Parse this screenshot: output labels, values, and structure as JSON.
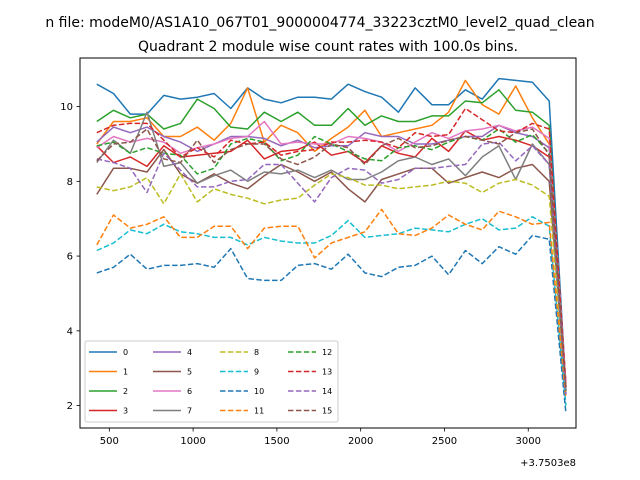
{
  "suptitle": "n file: modeM0/AS1A10_067T01_9000004774_33223cztM0_level2_quad_clean",
  "chart_data": {
    "type": "line",
    "title": "Quadrant 2 module wise count rates with 100.0s bins.",
    "xlabel": "",
    "ylabel": "",
    "x_offset_label": "+3.7503e8",
    "xlim": [
      325,
      3285
    ],
    "ylim": [
      1.4,
      11.3
    ],
    "xticks": [
      500,
      1000,
      1500,
      2000,
      2500,
      3000
    ],
    "yticks": [
      2,
      4,
      6,
      8,
      10
    ],
    "grid": false,
    "legend": {
      "placement": "lower left",
      "columns": 4
    },
    "x": [
      425,
      525,
      625,
      725,
      825,
      925,
      1025,
      1125,
      1225,
      1325,
      1425,
      1525,
      1625,
      1725,
      1825,
      1925,
      2025,
      2125,
      2225,
      2325,
      2425,
      2525,
      2625,
      2725,
      2825,
      2925,
      3025,
      3125,
      3225
    ],
    "series": [
      {
        "name": "0",
        "color": "#1f77b4",
        "dash": "solid",
        "values": [
          10.6,
          10.35,
          9.8,
          9.8,
          10.3,
          10.2,
          10.25,
          10.35,
          9.95,
          10.5,
          10.2,
          10.1,
          10.25,
          10.25,
          10.2,
          10.6,
          10.4,
          10.25,
          9.85,
          10.5,
          10.05,
          10.05,
          10.45,
          10.2,
          10.75,
          10.7,
          10.65,
          10.15,
          2.5
        ]
      },
      {
        "name": "1",
        "color": "#ff7f0e",
        "dash": "solid",
        "values": [
          9.0,
          9.6,
          9.6,
          9.7,
          9.2,
          9.2,
          9.45,
          9.1,
          9.55,
          10.5,
          9.05,
          9.5,
          9.3,
          8.8,
          9.15,
          9.45,
          9.9,
          9.2,
          9.3,
          9.4,
          9.5,
          9.85,
          10.7,
          10.05,
          9.8,
          10.55,
          9.7,
          9.0,
          2.6
        ]
      },
      {
        "name": "2",
        "color": "#2ca02c",
        "dash": "solid",
        "values": [
          9.6,
          9.9,
          9.7,
          9.8,
          9.4,
          9.55,
          10.2,
          9.95,
          9.45,
          9.4,
          9.85,
          9.6,
          9.85,
          9.5,
          9.5,
          9.95,
          9.5,
          9.75,
          9.6,
          9.6,
          9.75,
          9.75,
          10.15,
          10.1,
          10.45,
          9.9,
          9.85,
          9.5,
          2.4
        ]
      },
      {
        "name": "3",
        "color": "#d62728",
        "dash": "solid",
        "values": [
          8.95,
          8.5,
          8.65,
          8.4,
          8.95,
          8.65,
          8.7,
          8.75,
          8.8,
          9.1,
          8.6,
          8.8,
          8.85,
          9.05,
          8.7,
          8.8,
          8.5,
          8.95,
          8.75,
          8.65,
          9.15,
          8.8,
          9.35,
          9.1,
          9.2,
          9.1,
          8.95,
          8.65,
          2.5
        ]
      },
      {
        "name": "4",
        "color": "#9467bd",
        "dash": "solid",
        "values": [
          9.05,
          9.45,
          9.3,
          9.45,
          9.2,
          9.05,
          8.8,
          9.0,
          9.2,
          9.2,
          9.15,
          8.95,
          9.1,
          8.9,
          8.95,
          8.95,
          9.3,
          9.2,
          9.2,
          9.0,
          9.0,
          9.1,
          9.2,
          9.2,
          9.5,
          9.3,
          9.2,
          8.9,
          2.6
        ]
      },
      {
        "name": "5",
        "color": "#8c564b",
        "dash": "solid",
        "values": [
          7.65,
          8.35,
          8.35,
          8.25,
          8.85,
          8.2,
          7.95,
          8.2,
          7.95,
          7.8,
          8.15,
          8.45,
          8.25,
          8.0,
          8.25,
          7.8,
          7.45,
          8.05,
          8.2,
          8.35,
          8.35,
          7.95,
          8.1,
          8.25,
          8.1,
          8.35,
          8.45,
          8.0,
          2.3
        ]
      },
      {
        "name": "6",
        "color": "#e377c2",
        "dash": "solid",
        "values": [
          8.9,
          9.2,
          9.05,
          9.15,
          9.05,
          8.75,
          8.9,
          9.0,
          9.15,
          9.2,
          9.6,
          9.0,
          9.05,
          9.0,
          9.0,
          9.2,
          9.15,
          9.05,
          8.8,
          9.05,
          9.3,
          9.15,
          9.35,
          9.4,
          9.5,
          9.35,
          9.45,
          9.15,
          2.6
        ]
      },
      {
        "name": "7",
        "color": "#7f7f7f",
        "dash": "solid",
        "values": [
          8.5,
          9.1,
          8.75,
          9.85,
          8.4,
          8.5,
          7.95,
          8.15,
          8.3,
          8.0,
          8.25,
          8.2,
          8.3,
          8.1,
          8.3,
          8.05,
          8.05,
          8.25,
          8.55,
          8.65,
          8.45,
          8.6,
          8.15,
          8.65,
          8.95,
          8.05,
          9.0,
          8.45,
          2.4
        ]
      },
      {
        "name": "8",
        "color": "#bcbd22",
        "dash": "dashed",
        "values": [
          7.85,
          7.75,
          7.85,
          8.1,
          7.4,
          8.2,
          7.45,
          7.8,
          7.65,
          7.55,
          7.4,
          7.5,
          7.55,
          7.9,
          8.2,
          8.1,
          7.9,
          7.9,
          7.8,
          7.85,
          7.9,
          8.0,
          7.95,
          7.7,
          7.95,
          8.05,
          7.9,
          7.6,
          2.3
        ]
      },
      {
        "name": "9",
        "color": "#17becf",
        "dash": "dashed",
        "values": [
          6.15,
          6.35,
          6.7,
          6.6,
          6.85,
          6.65,
          6.6,
          6.5,
          6.5,
          6.3,
          6.5,
          6.4,
          6.35,
          6.35,
          6.55,
          6.95,
          6.5,
          6.55,
          6.6,
          6.75,
          6.7,
          6.65,
          6.85,
          7.0,
          6.7,
          6.75,
          7.05,
          6.8,
          2.0
        ]
      },
      {
        "name": "10",
        "color": "#1f77b4",
        "dash": "dashed",
        "values": [
          5.55,
          5.7,
          6.05,
          5.65,
          5.75,
          5.75,
          5.8,
          5.7,
          6.2,
          5.4,
          5.35,
          5.35,
          5.75,
          5.8,
          5.65,
          6.05,
          5.55,
          5.45,
          5.7,
          5.75,
          6.0,
          5.5,
          6.15,
          5.8,
          6.25,
          6.05,
          6.55,
          6.45,
          1.8
        ]
      },
      {
        "name": "11",
        "color": "#ff7f0e",
        "dash": "dashed",
        "values": [
          6.3,
          7.1,
          6.75,
          6.85,
          7.05,
          6.5,
          6.5,
          6.8,
          6.8,
          6.2,
          6.75,
          6.8,
          6.8,
          5.95,
          6.35,
          6.5,
          6.65,
          7.25,
          6.6,
          6.55,
          6.75,
          7.1,
          6.85,
          6.7,
          7.2,
          7.05,
          6.85,
          6.9,
          2.2
        ]
      },
      {
        "name": "12",
        "color": "#2ca02c",
        "dash": "dashed",
        "values": [
          8.95,
          9.05,
          8.75,
          8.9,
          8.75,
          8.7,
          8.2,
          8.35,
          9.0,
          9.15,
          9.05,
          8.55,
          8.7,
          9.2,
          9.0,
          8.8,
          8.6,
          8.55,
          8.9,
          8.95,
          8.85,
          9.05,
          9.2,
          9.1,
          9.4,
          9.05,
          9.25,
          8.75,
          2.4
        ]
      },
      {
        "name": "13",
        "color": "#d62728",
        "dash": "dashed",
        "values": [
          9.3,
          9.5,
          9.55,
          9.55,
          9.1,
          8.65,
          8.9,
          8.65,
          9.1,
          9.0,
          9.05,
          8.7,
          8.8,
          8.85,
          9.05,
          9.05,
          9.1,
          9.05,
          8.9,
          9.3,
          9.2,
          9.25,
          9.95,
          9.65,
          9.35,
          9.3,
          9.55,
          9.4,
          2.5
        ]
      },
      {
        "name": "14",
        "color": "#9467bd",
        "dash": "dashed",
        "values": [
          8.6,
          8.5,
          8.35,
          7.7,
          8.75,
          8.3,
          7.85,
          7.85,
          8.0,
          8.05,
          8.45,
          8.45,
          7.95,
          7.45,
          8.1,
          8.35,
          8.3,
          7.95,
          8.05,
          8.35,
          8.35,
          8.4,
          8.45,
          9.0,
          9.05,
          8.55,
          8.95,
          8.45,
          2.3
        ]
      },
      {
        "name": "15",
        "color": "#8c564b",
        "dash": "dashed",
        "values": [
          8.55,
          9.0,
          9.05,
          9.4,
          8.6,
          8.5,
          9.1,
          8.5,
          8.85,
          9.0,
          9.0,
          8.6,
          8.45,
          8.65,
          9.0,
          8.9,
          8.45,
          8.95,
          9.15,
          8.9,
          8.95,
          9.1,
          9.2,
          9.1,
          9.0,
          9.3,
          9.4,
          8.7,
          2.4
        ]
      }
    ]
  }
}
